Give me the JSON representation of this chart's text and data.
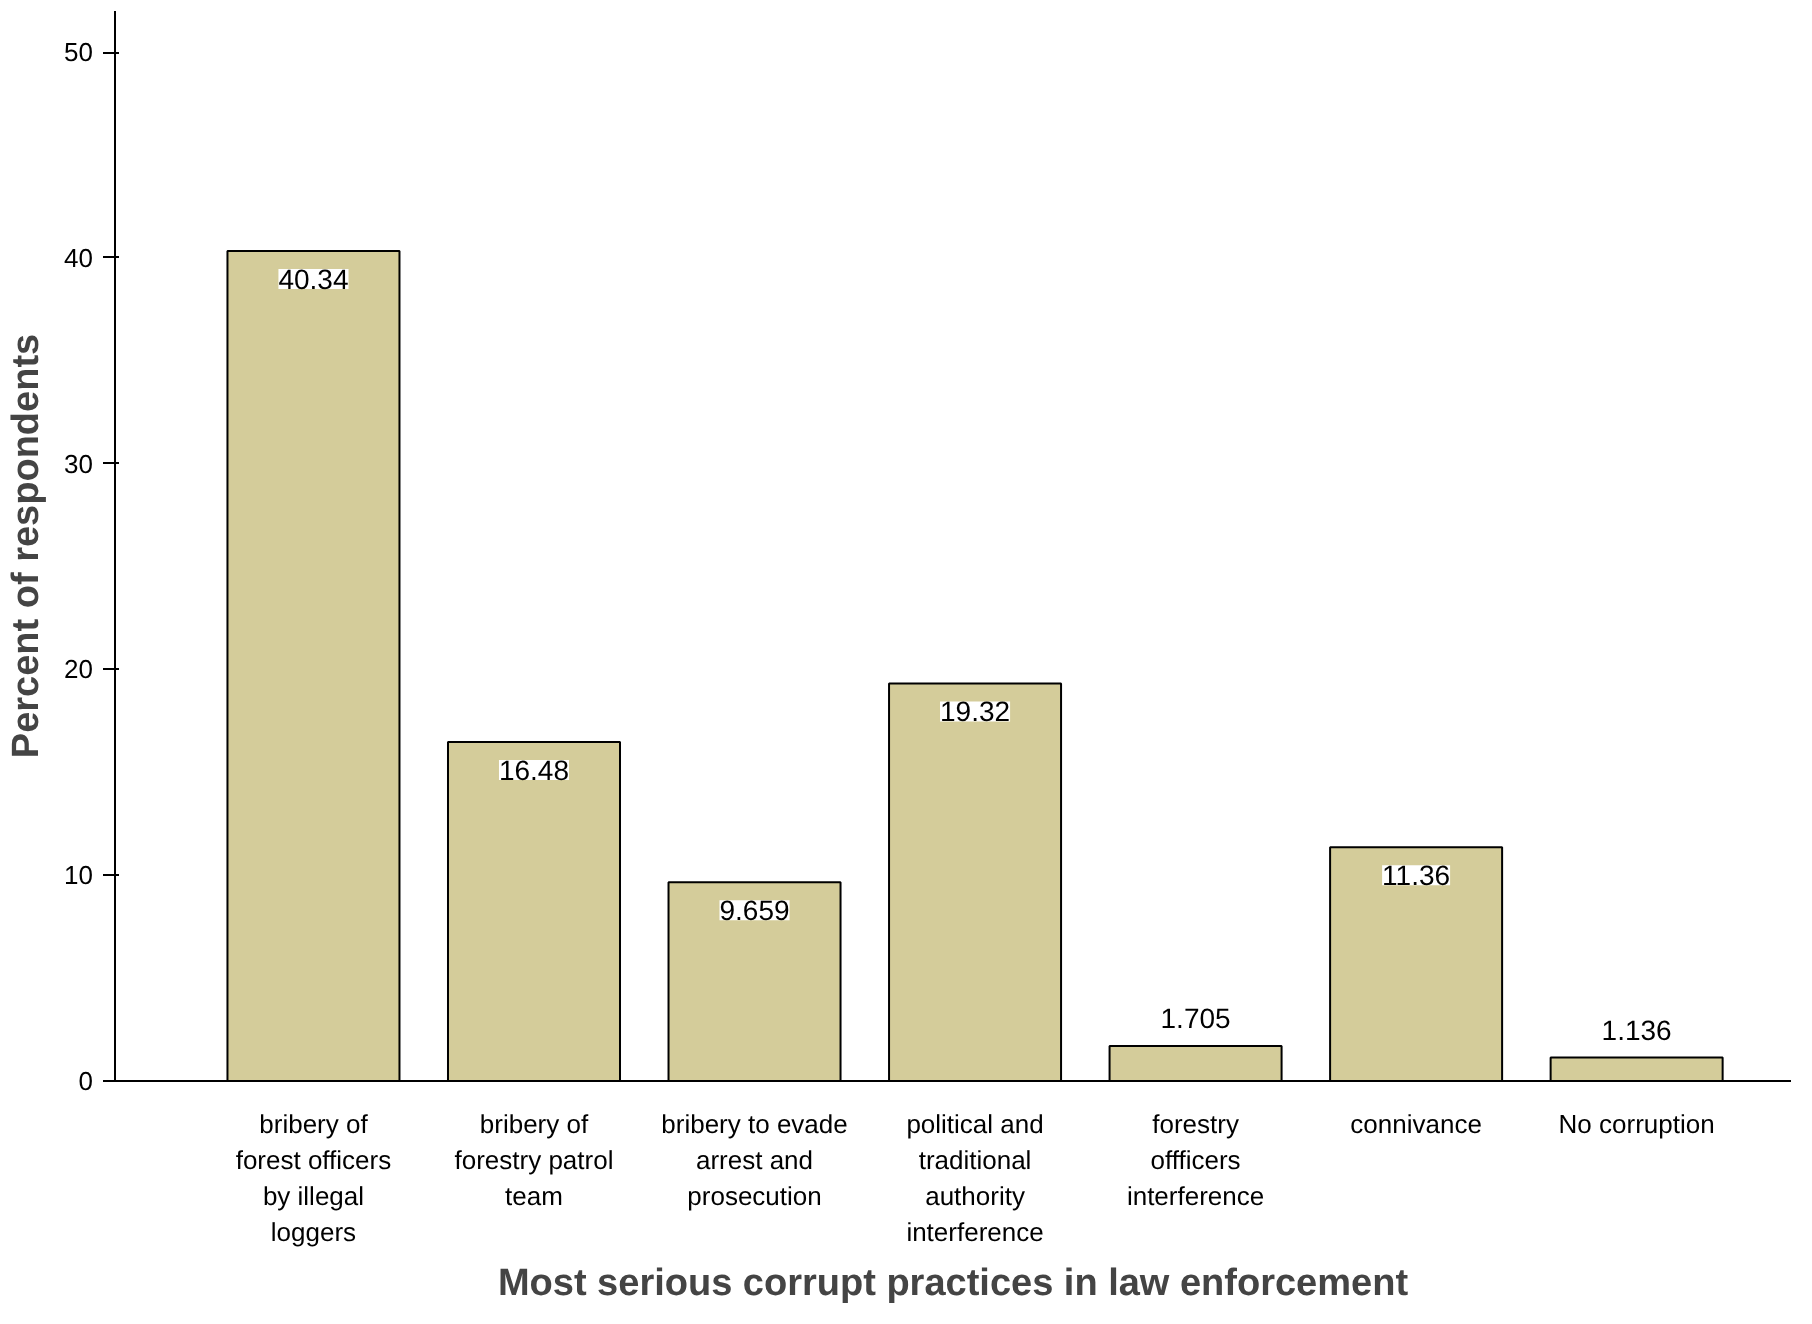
{
  "chart_data": {
    "type": "bar",
    "xlabel": "Most serious corrupt practices in law enforcement",
    "ylabel": "Percent of respondents",
    "categories": [
      "bribery of forest officers by illegal loggers",
      "bribery of forestry patrol team",
      "bribery to evade arrest and prosecution",
      "political and traditional authority interference",
      "forestry offficers interference",
      "connivance",
      "No corruption"
    ],
    "values": [
      40.34,
      16.48,
      9.659,
      19.32,
      1.705,
      11.36,
      1.136
    ],
    "color": "#d4cc9a",
    "ylim": [
      0,
      52
    ],
    "yticks": [
      0,
      10,
      20,
      30,
      40,
      50
    ],
    "grid": false,
    "data_labels": true
  }
}
